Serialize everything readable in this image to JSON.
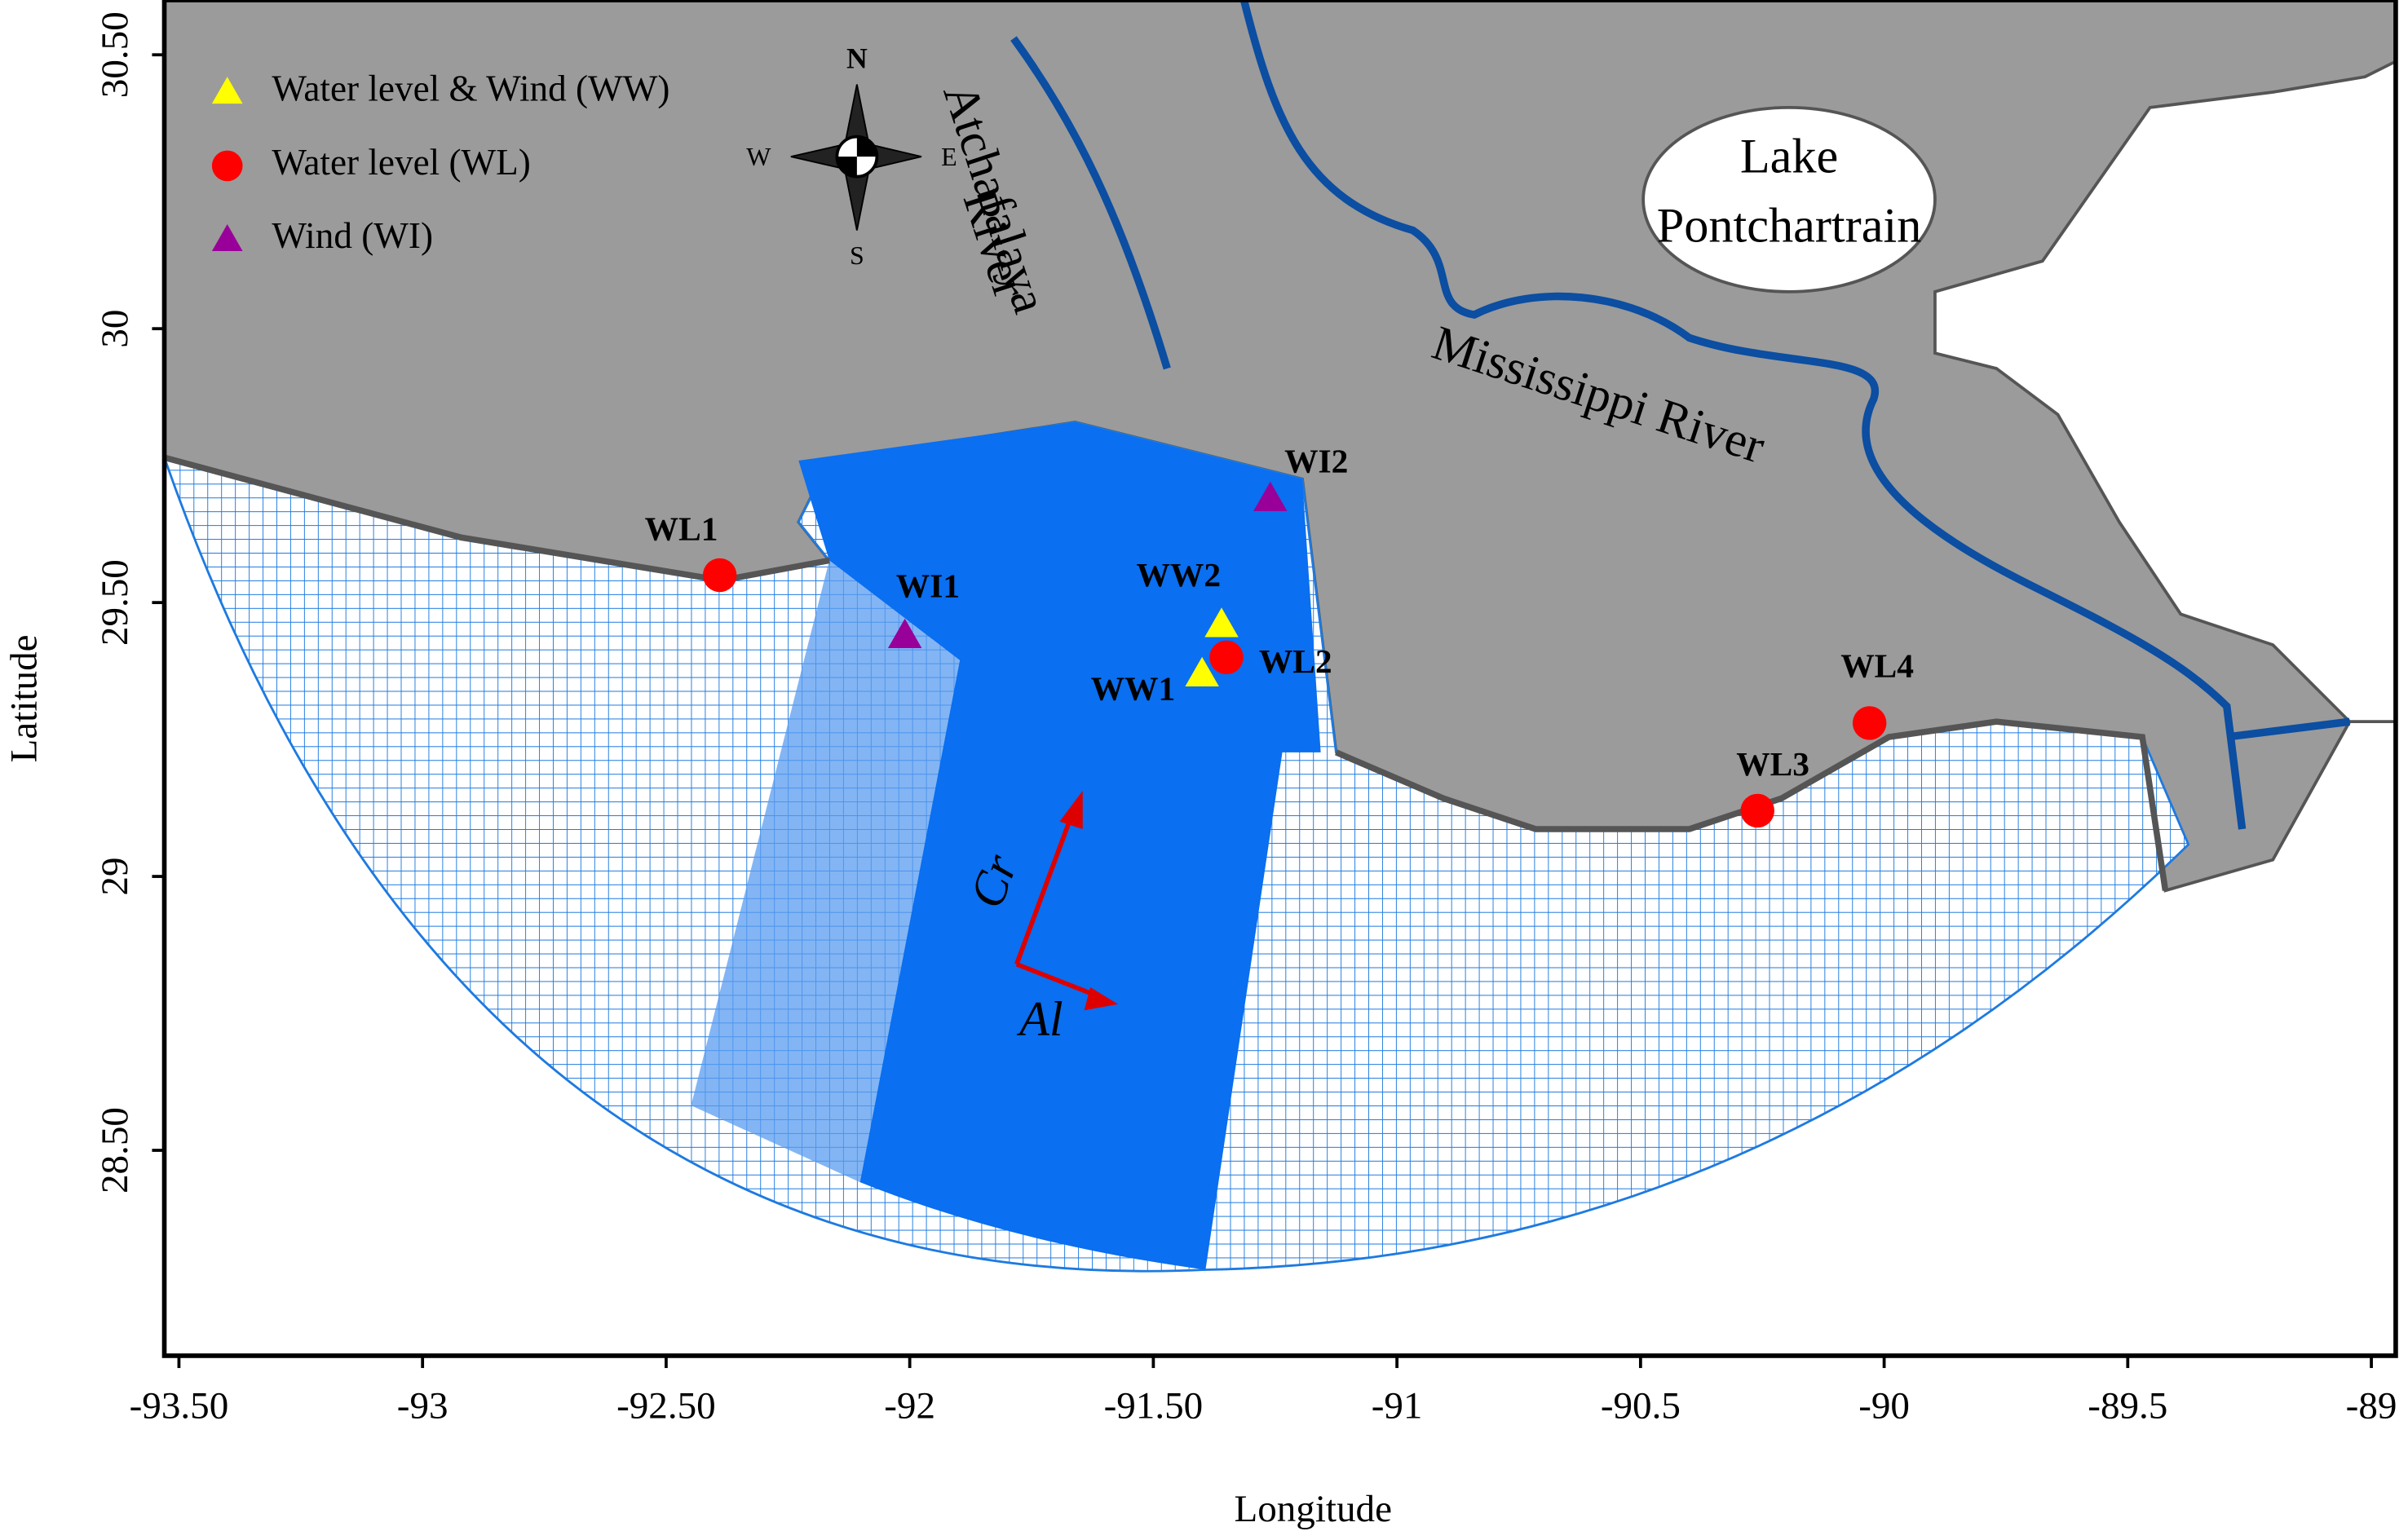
{
  "map": {
    "x_label": "Longitude",
    "y_label": "Latitude",
    "xlim": [
      -93.53,
      -88.95
    ],
    "ylim": [
      28.125,
      30.6
    ],
    "xticks": [
      {
        "value": -93.5,
        "label": "-93.50"
      },
      -93,
      {
        "value": -92.5,
        "label": "-92.50"
      },
      -92,
      {
        "value": -91.5,
        "label": "-91.50"
      },
      -91,
      -90.5,
      -90,
      -89.5,
      -89
    ],
    "yticks": [
      {
        "value": 30.5,
        "label": "30.50"
      },
      30,
      {
        "value": 29.5,
        "label": "29.50"
      },
      29,
      {
        "value": 28.5,
        "label": "28.50"
      }
    ],
    "legend": [
      {
        "label": "Water level & Wind (WW)",
        "color": "#ffff00",
        "marker": "triangle"
      },
      {
        "label": "Water level  (WL)",
        "color": "#ff0000",
        "marker": "circle"
      },
      {
        "label": "Wind  (WI)",
        "color": "#990099",
        "marker": "triangle"
      }
    ],
    "stations": [
      {
        "name": "WL1",
        "lon": -92.39,
        "lat": 29.55,
        "type": 1
      },
      {
        "name": "WI1",
        "lon": -92.01,
        "lat": 29.44,
        "type": 2
      },
      {
        "name": "WW2",
        "lon": -91.36,
        "lat": 29.46,
        "type": 0
      },
      {
        "name": "WW1",
        "lon": -91.4,
        "lat": 29.37,
        "type": 0
      },
      {
        "name": "WL2",
        "lon": -91.35,
        "lat": 29.4,
        "type": 1
      },
      {
        "name": "WI2",
        "lon": -91.26,
        "lat": 29.69,
        "type": 2
      },
      {
        "name": "WL3",
        "lon": -90.26,
        "lat": 29.12,
        "type": 1
      },
      {
        "name": "WL4",
        "lon": -90.03,
        "lat": 29.28,
        "type": 1
      }
    ],
    "compass": {
      "north": "N",
      "east": "E",
      "south": "S",
      "west": "W"
    },
    "place_labels": {
      "river1_a": "Atchafalaya",
      "river1_b": "River",
      "lake_a": "Lake",
      "lake_b": "Pontchartrain",
      "river2": "Mississippi River"
    },
    "axis_arrows": {
      "cross": "Cr",
      "along": "Al"
    }
  }
}
